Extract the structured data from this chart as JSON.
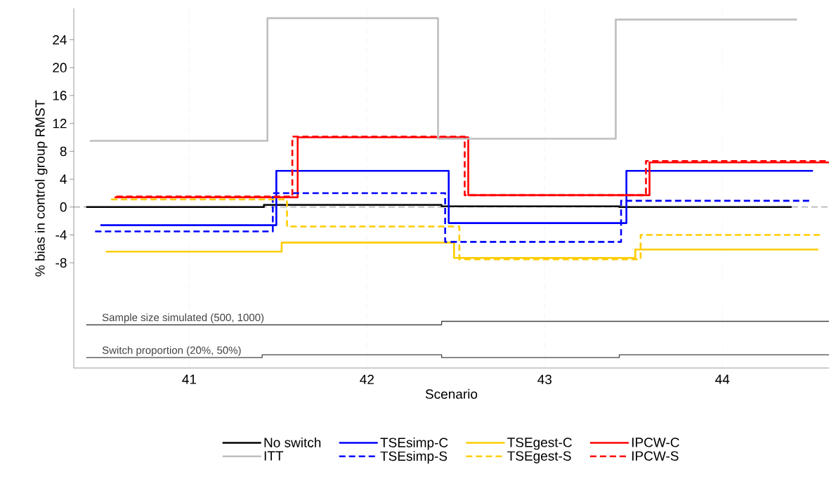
{
  "chart_data": {
    "type": "step",
    "xlabel": "Scenario",
    "ylabel": "% bias in control group RMST",
    "xlim": [
      40.35,
      44.6
    ],
    "ylim": [
      -23.1,
      28.5
    ],
    "xticks": [
      41,
      42,
      43,
      44
    ],
    "yticks": [
      -8,
      -4,
      0,
      4,
      8,
      12,
      16,
      20,
      24
    ],
    "grid": "x",
    "legend": "bottom",
    "ref_lines": [
      {
        "axis": "y",
        "value": 0,
        "color": "#888888",
        "line_style": "dashed"
      }
    ],
    "annotations": [
      {
        "text": "Sample size simulated (500, 1000)",
        "x": 40.5,
        "y": -16.9
      },
      {
        "text": "Switch proportion (20%, 50%)",
        "x": 40.5,
        "y": -21.6
      }
    ],
    "series": [
      {
        "name": "No switch",
        "color": "#000000",
        "line_style": "solid",
        "x": [
          40.42,
          41.42,
          42.42,
          43.42,
          44.39
        ],
        "values": [
          0,
          0.3,
          0.1,
          0,
          0
        ]
      },
      {
        "name": "TSEsimp-C",
        "color": "#0000ff",
        "line_style": "solid",
        "x": [
          40.5,
          41.49,
          42.46,
          43.46,
          44.51
        ],
        "values": [
          -2.6,
          5.2,
          -2.3,
          5.2,
          5.2
        ]
      },
      {
        "name": "TSEgest-C",
        "color": "#ffcc00",
        "line_style": "solid",
        "x": [
          40.53,
          41.52,
          42.49,
          43.51,
          44.54
        ],
        "values": [
          -6.4,
          -5.1,
          -7.3,
          -6.1,
          -6.1
        ]
      },
      {
        "name": "IPCW-C",
        "color": "#ff0000",
        "line_style": "solid",
        "x": [
          40.58,
          41.61,
          42.57,
          43.59,
          44.6
        ],
        "values": [
          1.4,
          10.0,
          1.7,
          6.4,
          6.4
        ]
      },
      {
        "name": "ITT",
        "color": "#bebebe",
        "line_style": "solid",
        "x": [
          40.44,
          41.44,
          42.4,
          43.4,
          44.42
        ],
        "values": [
          9.5,
          27.1,
          9.8,
          26.9,
          26.9
        ]
      },
      {
        "name": "TSEsimp-S",
        "color": "#0000ff",
        "line_style": "dashed",
        "x": [
          40.47,
          41.47,
          42.44,
          43.43,
          44.49
        ],
        "values": [
          -3.5,
          2.0,
          -5.0,
          0.9,
          0.9
        ]
      },
      {
        "name": "TSEgest-S",
        "color": "#ffcc00",
        "line_style": "dashed",
        "x": [
          40.56,
          41.55,
          42.52,
          43.54,
          44.56
        ],
        "values": [
          1.1,
          -2.8,
          -7.5,
          -4.0,
          -4.0
        ]
      },
      {
        "name": "IPCW-S",
        "color": "#ff0000",
        "line_style": "dashed",
        "x": [
          40.59,
          41.58,
          42.55,
          43.57,
          44.6
        ],
        "values": [
          1.5,
          10.1,
          1.7,
          6.6,
          6.6
        ]
      },
      {
        "color": "#444444",
        "line_style": "solid",
        "x": [
          40.42,
          42.42,
          44.6
        ],
        "values": [
          -16.9,
          -16.4,
          -16.4
        ]
      },
      {
        "color": "#444444",
        "line_style": "solid",
        "x": [
          40.42,
          41.41,
          42.42,
          43.42,
          44.6
        ],
        "values": [
          -21.6,
          -21.2,
          -21.6,
          -21.2,
          -21.2
        ]
      }
    ]
  }
}
